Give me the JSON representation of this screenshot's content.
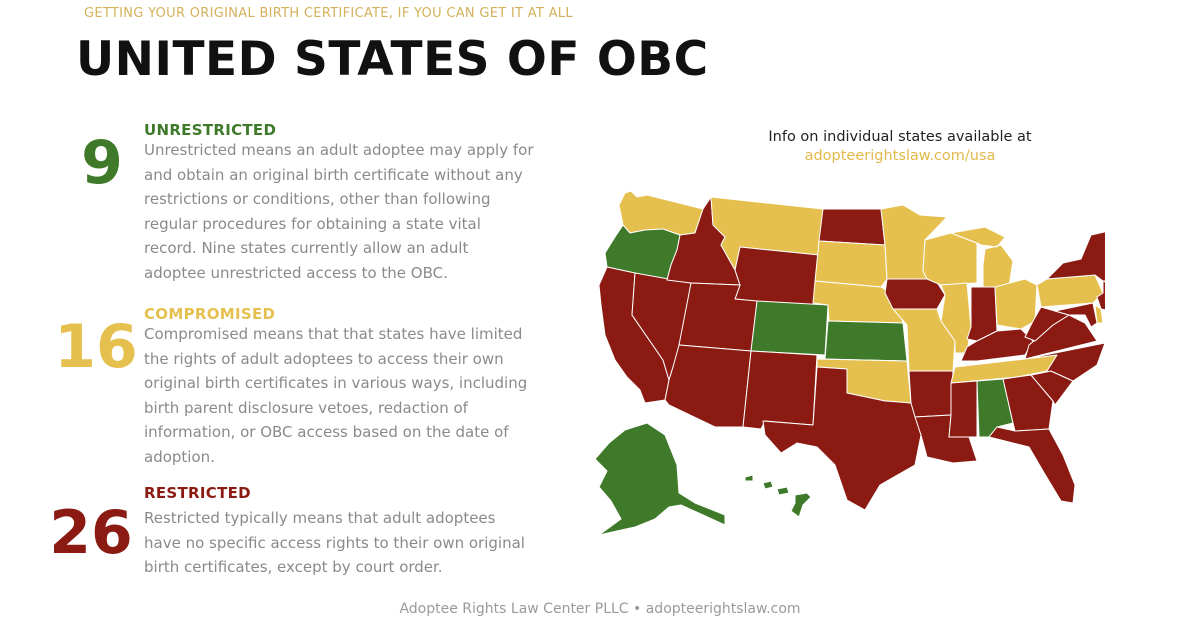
{
  "kicker": "GETTING YOUR ORIGINAL BIRTH CERTIFICATE, IF YOU CAN GET IT AT ALL",
  "title": "UNITED STATES OF OBC",
  "categories": [
    {
      "count": "9",
      "label": "UNRESTRICTED",
      "color": "#3f7a2a",
      "description": "Unrestricted means an adult adoptee may apply for and obtain an original birth certificate without any restrictions or conditions, other than following regular procedures for obtaining a state vital record. Nine states currently allow an adult adoptee unrestricted access to the OBC."
    },
    {
      "count": "16",
      "label": "COMPROMISED",
      "color": "#e6c04e",
      "description": "Compromised means that that states have limited the rights of adult adoptees to access their own original birth certificates in various ways, including birth parent disclosure vetoes, redaction of information, or OBC access based on the date of adoption."
    },
    {
      "count": "26",
      "label": "RESTRICTED",
      "color": "#8b1a12",
      "description": "Restricted typically means that adult adoptees have no specific access rights to their own original birth certificates, except by court order."
    }
  ],
  "info": {
    "text": "Info on individual states available at",
    "link": "adopteerightslaw.com/usa"
  },
  "footer": "Adoptee Rights Law Center PLLC • adopteerightslaw.com",
  "map": {
    "colors": {
      "unrestricted": "#3f7a2a",
      "compromised": "#e6c04e",
      "restricted": "#8b1a12"
    },
    "states": {
      "WA": "compromised",
      "OR": "unrestricted",
      "CA": "restricted",
      "NV": "restricted",
      "ID": "restricted",
      "MT": "compromised",
      "WY": "restricted",
      "UT": "restricted",
      "AZ": "restricted",
      "CO": "unrestricted",
      "NM": "restricted",
      "ND": "restricted",
      "SD": "compromised",
      "NE": "compromised",
      "KS": "unrestricted",
      "OK": "compromised",
      "TX": "restricted",
      "MN": "compromised",
      "IA": "restricted",
      "MO": "compromised",
      "AR": "restricted",
      "LA": "restricted",
      "WI": "compromised",
      "IL": "compromised",
      "MI": "compromised",
      "IN": "restricted",
      "OH": "compromised",
      "KY": "restricted",
      "TN": "compromised",
      "MS": "restricted",
      "AL": "unrestricted",
      "GA": "restricted",
      "FL": "restricted",
      "SC": "restricted",
      "NC": "restricted",
      "VA": "restricted",
      "WV": "restricted",
      "PA": "compromised",
      "NY": "restricted",
      "VT": "restricted",
      "NH": "unrestricted",
      "ME": "unrestricted",
      "MA": "compromised",
      "RI": "unrestricted",
      "CT": "compromised",
      "NJ": "restricted",
      "DE": "compromised",
      "MD": "restricted",
      "AK": "unrestricted",
      "HI": "unrestricted"
    }
  }
}
